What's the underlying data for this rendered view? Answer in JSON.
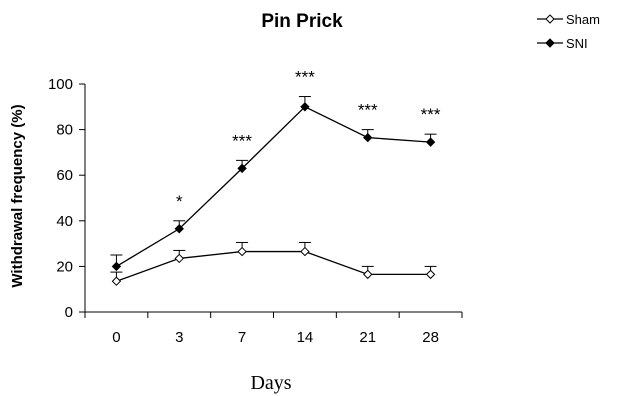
{
  "chart_data": {
    "type": "line",
    "title": "Pin Prick",
    "xlabel": "Days",
    "ylabel": "Withdrawal frequency (%)",
    "categories": [
      "0",
      "3",
      "7",
      "14",
      "21",
      "28"
    ],
    "yticks": [
      "0",
      "20",
      "40",
      "60",
      "80",
      "100"
    ],
    "ylim": [
      0,
      100
    ],
    "grid": false,
    "legend_position": "top-right",
    "series": [
      {
        "name": "Sham",
        "marker": "open-diamond",
        "color": "#000000",
        "values": [
          13.5,
          23.5,
          26.5,
          26.5,
          16.5,
          16.5
        ],
        "errors": [
          4,
          3.5,
          4,
          4,
          3.5,
          3.5
        ]
      },
      {
        "name": "SNI",
        "marker": "filled-diamond",
        "color": "#000000",
        "values": [
          20,
          36.5,
          63,
          90,
          76.5,
          74.5
        ],
        "errors": [
          5,
          3.5,
          3.5,
          4.5,
          3.5,
          3.5
        ]
      }
    ],
    "annotations": [
      "",
      "*",
      "***",
      "***",
      "***",
      "***"
    ]
  }
}
